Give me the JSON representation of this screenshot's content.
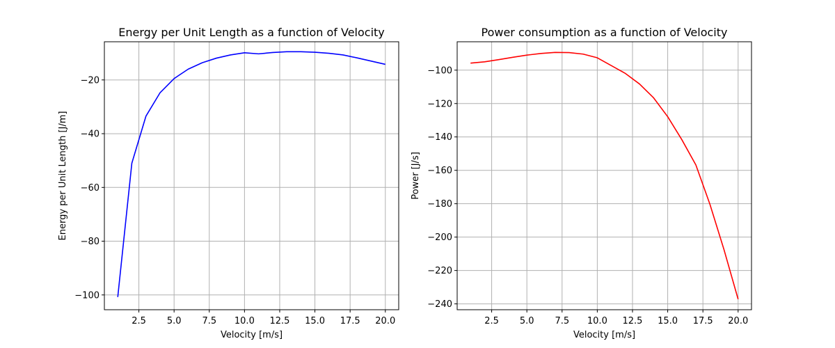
{
  "chart_data": [
    {
      "type": "line",
      "title": "Energy per Unit Length as a function of Velocity",
      "xlabel": "Velocity [m/s]",
      "ylabel": "Energy per Unit Length [J/m]",
      "xlim": [
        0.05,
        20.95
      ],
      "ylim": [
        -105.5,
        -5.8
      ],
      "xticks": [
        2.5,
        5.0,
        7.5,
        10.0,
        12.5,
        15.0,
        17.5,
        20.0
      ],
      "xtick_labels": [
        "2.5",
        "5.0",
        "7.5",
        "10.0",
        "12.5",
        "15.0",
        "17.5",
        "20.0"
      ],
      "yticks": [
        -100,
        -80,
        -60,
        -40,
        -20
      ],
      "ytick_labels": [
        "−100",
        "−80",
        "−60",
        "−40",
        "−20"
      ],
      "grid": true,
      "series": [
        {
          "color": "#0000ff",
          "x": [
            1,
            2,
            3,
            4,
            5,
            6,
            7,
            8,
            9,
            10,
            11,
            12,
            13,
            14,
            15,
            16,
            17,
            18,
            19,
            20
          ],
          "y": [
            -100.8,
            -51.0,
            -33.5,
            -24.8,
            -19.5,
            -16.0,
            -13.6,
            -11.9,
            -10.7,
            -9.9,
            -10.3,
            -9.8,
            -9.5,
            -9.5,
            -9.7,
            -10.1,
            -10.7,
            -11.8,
            -13.0,
            -14.2
          ]
        }
      ]
    },
    {
      "type": "line",
      "title": "Power consumption as a function of Velocity",
      "xlabel": "Velocity [m/s]",
      "ylabel": "Power [J/s]",
      "xlim": [
        0.05,
        20.95
      ],
      "ylim": [
        -243.5,
        -83.0
      ],
      "xticks": [
        2.5,
        5.0,
        7.5,
        10.0,
        12.5,
        15.0,
        17.5,
        20.0
      ],
      "xtick_labels": [
        "2.5",
        "5.0",
        "7.5",
        "10.0",
        "12.5",
        "15.0",
        "17.5",
        "20.0"
      ],
      "yticks": [
        -240,
        -220,
        -200,
        -180,
        -160,
        -140,
        -120,
        -100
      ],
      "ytick_labels": [
        "−240",
        "−220",
        "−200",
        "−180",
        "−160",
        "−140",
        "−120",
        "−100"
      ],
      "grid": true,
      "series": [
        {
          "color": "#ff0000",
          "x": [
            1,
            2,
            3,
            4,
            5,
            6,
            7,
            8,
            9,
            10,
            11,
            12,
            13,
            14,
            15,
            16,
            17,
            18,
            19,
            20
          ],
          "y": [
            -95.8,
            -95.0,
            -93.7,
            -92.3,
            -91.0,
            -90.0,
            -89.4,
            -89.5,
            -90.4,
            -92.6,
            -97.3,
            -102.0,
            -108.3,
            -116.6,
            -127.9,
            -141.6,
            -156.8,
            -180.4,
            -207.6,
            -237.2
          ]
        }
      ]
    }
  ]
}
